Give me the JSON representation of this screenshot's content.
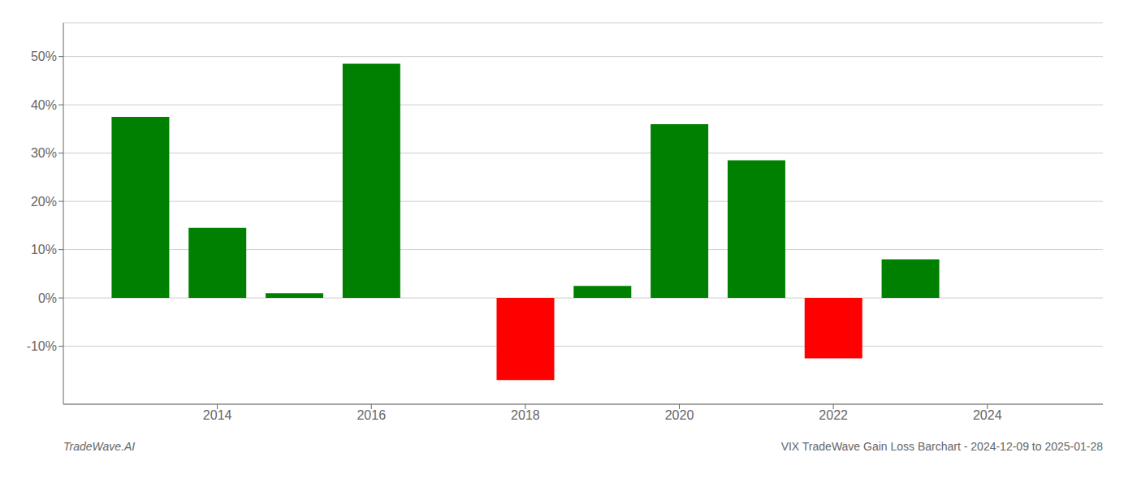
{
  "chart_data": {
    "type": "bar",
    "annotations": [
      "TradeWave.AI",
      "VIX TradeWave Gain Loss Barchart - 2024-12-09 to 2025-01-28"
    ],
    "x": [
      2013,
      2014,
      2015,
      2016,
      2018,
      2019,
      2020,
      2021,
      2022,
      2023
    ],
    "values": [
      37.5,
      14.5,
      1.0,
      48.5,
      -17.0,
      2.5,
      36.0,
      28.5,
      -12.5,
      8.0
    ],
    "colors": [
      "#008000",
      "#008000",
      "#008000",
      "#008000",
      "#ff0000",
      "#008000",
      "#008000",
      "#008000",
      "#ff0000",
      "#008000"
    ],
    "xlim": [
      2012.0,
      2025.5
    ],
    "xticks": [
      2014,
      2016,
      2018,
      2020,
      2022,
      2024
    ],
    "ylim": [
      -22,
      57
    ],
    "yticks": [
      {
        "value": -10,
        "label": "-10%"
      },
      {
        "value": 0,
        "label": "0%"
      },
      {
        "value": 10,
        "label": "10%"
      },
      {
        "value": 20,
        "label": "20%"
      },
      {
        "value": 30,
        "label": "30%"
      },
      {
        "value": 40,
        "label": "40%"
      },
      {
        "value": 50,
        "label": "50%"
      }
    ],
    "grid": true
  }
}
